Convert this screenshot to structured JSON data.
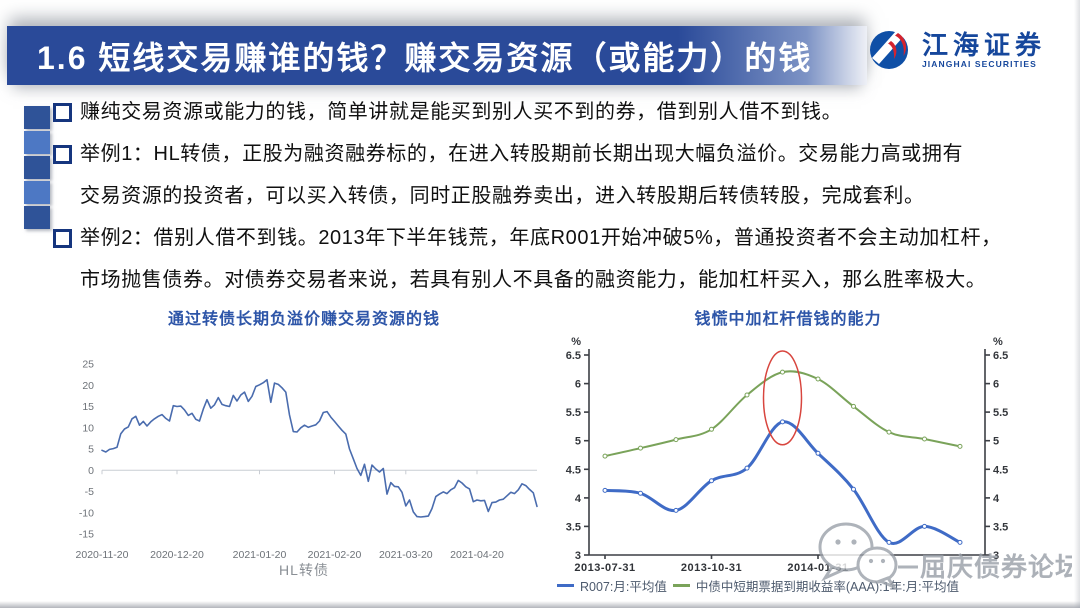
{
  "slide": {
    "title": "1.6 短线交易赚谁的钱？赚交易资源（或能力）的钱",
    "logo": {
      "cn": "江海证券",
      "en": "JIANGHAI SECURITIES"
    },
    "bullets": [
      "赚纯交易资源或能力的钱，简单讲就是能买到别人买不到的券，借到别人借不到钱。",
      "举例1：HL转债，正股为融资融券标的，在进入转股期前长期出现大幅负溢价。交易能力高或拥有\n交易资源的投资者，可以买入转债，同时正股融券卖出，进入转股期后转债转股，完成套利。",
      "举例2：借别人借不到钱。2013年下半年钱荒，年底R001开始冲破5%，普通投资者不会主动加杠杆，\n市场抛售债券。对债券交易者来说，若具有别人不具备的融资能力，能加杠杆买入，那么胜率极大。"
    ],
    "watermark": "屈庆债券论坛",
    "colors": {
      "title_bar_blue": "#2a4a99",
      "chart_title_blue": "#2d55a8",
      "logo_blue": "#0f4fa6",
      "logo_red": "#d5232e",
      "watermark_grey": "#989ea7"
    }
  },
  "chart_data": [
    {
      "type": "line",
      "title": "通过转债长期负溢价赚交易资源的钱",
      "legend": "HL转债",
      "line_color": "#4a6cae",
      "ylim": [
        -15,
        25
      ],
      "yticks": [
        25,
        20,
        15,
        10,
        5,
        0,
        -5,
        -10,
        -15
      ],
      "xtick_labels": [
        "2020-11-20",
        "2020-12-20",
        "2021-01-20",
        "2021-02-20",
        "2021-03-20",
        "2021-04-20"
      ],
      "xtick_idx": [
        0,
        20,
        42,
        62,
        81,
        100
      ],
      "grid": "zero-axis-only",
      "legend_position": "bottom-center",
      "values": [
        4.7,
        4.3,
        4.9,
        5.1,
        5.4,
        8.6,
        9.7,
        10.2,
        12.1,
        12.7,
        10.6,
        11.5,
        10.4,
        11.4,
        12.1,
        12.7,
        13.1,
        12.2,
        11.6,
        15.2,
        15.0,
        15.1,
        14.2,
        12.9,
        13.4,
        12.0,
        11.6,
        14.4,
        16.6,
        14.6,
        15.4,
        17.1,
        15.5,
        15.2,
        15.0,
        17.6,
        16.3,
        17.7,
        18.4,
        16.2,
        17.4,
        19.7,
        20.1,
        20.6,
        21.3,
        16.0,
        20.5,
        20.2,
        19.4,
        18.4,
        13.0,
        9.1,
        9.0,
        10.0,
        10.6,
        10.1,
        10.4,
        10.7,
        11.6,
        13.6,
        13.8,
        12.5,
        11.5,
        10.4,
        9.4,
        8.5,
        5.0,
        2.7,
        0.4,
        -1.2,
        1.4,
        -2.6,
        1.2,
        0.3,
        -0.4,
        0.4,
        -5.6,
        -2.9,
        -3.8,
        -3.9,
        -5.2,
        -8.4,
        -7.0,
        -9.8,
        -10.9,
        -11.0,
        -10.9,
        -10.8,
        -9.0,
        -6.2,
        -5.6,
        -5.1,
        -5.5,
        -4.6,
        -4.1,
        -2.4,
        -3.0,
        -3.9,
        -4.4,
        -7.4,
        -7.0,
        -7.2,
        -7.1,
        -9.7,
        -7.6,
        -7.5,
        -7.0,
        -6.8,
        -6.0,
        -5.2,
        -5.5,
        -4.6,
        -3.2,
        -3.6,
        -4.5,
        -5.3,
        -8.5
      ]
    },
    {
      "type": "line",
      "title": "钱慌中加杠杆借钱的能力",
      "unit": "%",
      "ylim": [
        3,
        6.5
      ],
      "yticks": [
        6.5,
        6,
        5.5,
        5,
        4.5,
        4,
        3.5,
        3
      ],
      "xtick_labels": [
        "2013-07-31",
        "2013-10-31",
        "2014-01-31"
      ],
      "xtick_idx": [
        0,
        3,
        6
      ],
      "dual_axis": true,
      "legend_position": "bottom-left",
      "series": [
        {
          "name": "R007:月:平均值",
          "color": "#3f6bc6",
          "width": 3,
          "values": [
            4.13,
            4.08,
            3.78,
            4.3,
            4.52,
            5.33,
            4.78,
            4.15,
            3.22,
            3.5,
            3.22
          ]
        },
        {
          "name": "中债中短期票据到期收益率(AAA):1年:月:平均值",
          "color": "#7aa35a",
          "width": 2,
          "values": [
            4.73,
            4.87,
            5.02,
            5.2,
            5.8,
            6.2,
            6.08,
            5.6,
            5.15,
            5.03,
            4.9
          ]
        }
      ],
      "annotation_ellipse": {
        "at_index": 5,
        "y_center": 5.75,
        "y_radius": 0.82,
        "x_radius": 19,
        "color": "#d8453e"
      }
    }
  ]
}
